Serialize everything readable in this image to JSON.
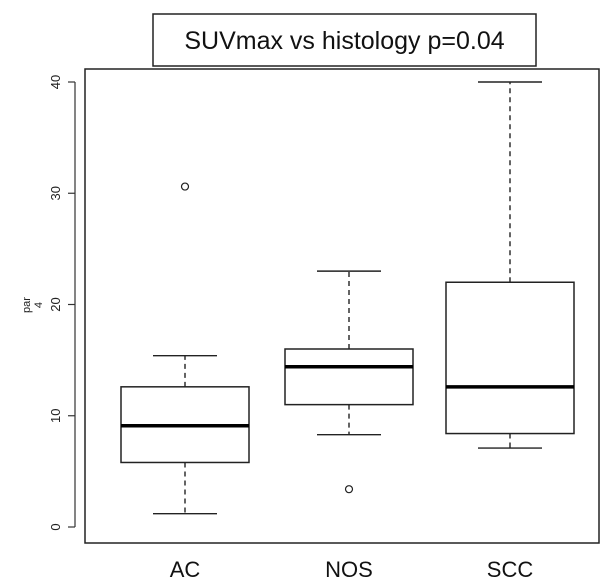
{
  "chart_data": {
    "type": "boxplot",
    "title": "SUVmax vs histology p=0.04",
    "ylabel": "par\n4",
    "xlabel": "",
    "ylim": [
      0,
      40.5
    ],
    "yticks": [
      0,
      10,
      20,
      30,
      40
    ],
    "grid": false,
    "categories": [
      "AC",
      "NOS",
      "SCC"
    ],
    "boxes": [
      {
        "category": "AC",
        "whisker_low": 1.2,
        "q1": 5.8,
        "median": 9.1,
        "q3": 12.6,
        "whisker_high": 15.4,
        "outliers": [
          30.6
        ]
      },
      {
        "category": "NOS",
        "whisker_low": 8.3,
        "q1": 11.0,
        "median": 14.4,
        "q3": 16.0,
        "whisker_high": 23.0,
        "outliers": [
          3.4
        ]
      },
      {
        "category": "SCC",
        "whisker_low": 7.1,
        "q1": 8.4,
        "median": 12.6,
        "q3": 22.0,
        "whisker_high": 40.0,
        "outliers": []
      }
    ]
  }
}
